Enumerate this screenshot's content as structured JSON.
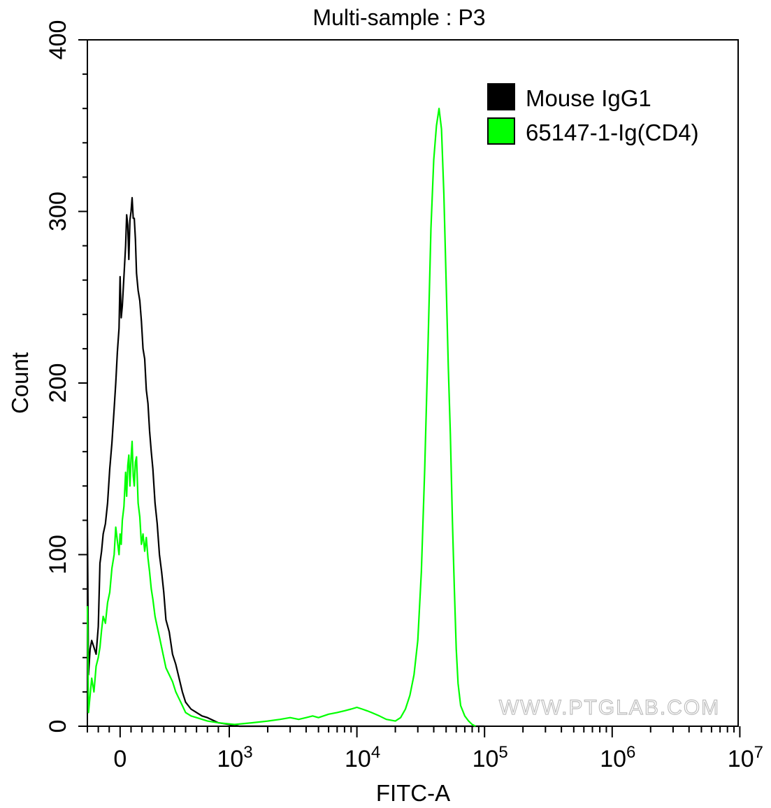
{
  "chart_data": {
    "type": "line",
    "title": "Multi-sample : P3",
    "xlabel": "FITC-A",
    "ylabel": "Count",
    "x_scale": "biexponential",
    "xlim": [
      -300,
      10000000
    ],
    "ylim": [
      0,
      400
    ],
    "y_ticks": [
      "0",
      "100",
      "200",
      "300",
      "400"
    ],
    "x_ticks": [
      {
        "value": 0,
        "base": "0",
        "exp": ""
      },
      {
        "value": 1000,
        "base": "10",
        "exp": "3"
      },
      {
        "value": 10000,
        "base": "10",
        "exp": "4"
      },
      {
        "value": 100000,
        "base": "10",
        "exp": "5"
      },
      {
        "value": 1000000,
        "base": "10",
        "exp": "6"
      },
      {
        "value": 10000000,
        "base": "10",
        "exp": "7"
      }
    ],
    "grid": false,
    "legend_position": "top-right",
    "watermark": "WWW.PTGLAB.COM",
    "series": [
      {
        "name": "Mouse IgG1",
        "color": "#000000",
        "points": [
          [
            -300,
            120
          ],
          [
            -290,
            30
          ],
          [
            -275,
            45
          ],
          [
            -260,
            50
          ],
          [
            -240,
            46
          ],
          [
            -220,
            42
          ],
          [
            -200,
            58
          ],
          [
            -185,
            95
          ],
          [
            -170,
            102
          ],
          [
            -155,
            112
          ],
          [
            -135,
            118
          ],
          [
            -115,
            130
          ],
          [
            -95,
            150
          ],
          [
            -75,
            165
          ],
          [
            -55,
            185
          ],
          [
            -40,
            200
          ],
          [
            -25,
            218
          ],
          [
            -10,
            232
          ],
          [
            0,
            262
          ],
          [
            10,
            238
          ],
          [
            20,
            245
          ],
          [
            35,
            262
          ],
          [
            50,
            280
          ],
          [
            60,
            298
          ],
          [
            70,
            292
          ],
          [
            80,
            272
          ],
          [
            90,
            295
          ],
          [
            100,
            300
          ],
          [
            110,
            308
          ],
          [
            120,
            296
          ],
          [
            130,
            296
          ],
          [
            140,
            284
          ],
          [
            150,
            264
          ],
          [
            165,
            254
          ],
          [
            180,
            248
          ],
          [
            195,
            236
          ],
          [
            210,
            220
          ],
          [
            225,
            214
          ],
          [
            240,
            196
          ],
          [
            255,
            188
          ],
          [
            270,
            172
          ],
          [
            285,
            160
          ],
          [
            300,
            150
          ],
          [
            320,
            130
          ],
          [
            340,
            118
          ],
          [
            360,
            100
          ],
          [
            380,
            90
          ],
          [
            400,
            78
          ],
          [
            420,
            62
          ],
          [
            450,
            55
          ],
          [
            480,
            42
          ],
          [
            510,
            36
          ],
          [
            540,
            28
          ],
          [
            570,
            20
          ],
          [
            600,
            14
          ],
          [
            650,
            10
          ],
          [
            700,
            8
          ],
          [
            750,
            6
          ],
          [
            800,
            5
          ],
          [
            900,
            2
          ],
          [
            1000,
            1
          ],
          [
            1200,
            0
          ],
          [
            100000,
            0
          ]
        ]
      },
      {
        "name": "65147-1-Ig(CD4)",
        "color": "#00ff00",
        "points": [
          [
            -300,
            70
          ],
          [
            -290,
            8
          ],
          [
            -275,
            18
          ],
          [
            -260,
            28
          ],
          [
            -240,
            20
          ],
          [
            -220,
            35
          ],
          [
            -200,
            40
          ],
          [
            -185,
            46
          ],
          [
            -170,
            56
          ],
          [
            -155,
            64
          ],
          [
            -135,
            60
          ],
          [
            -115,
            72
          ],
          [
            -95,
            78
          ],
          [
            -75,
            92
          ],
          [
            -55,
            100
          ],
          [
            -40,
            116
          ],
          [
            -25,
            108
          ],
          [
            -10,
            100
          ],
          [
            0,
            112
          ],
          [
            10,
            106
          ],
          [
            20,
            120
          ],
          [
            35,
            128
          ],
          [
            50,
            148
          ],
          [
            60,
            134
          ],
          [
            70,
            152
          ],
          [
            80,
            158
          ],
          [
            90,
            140
          ],
          [
            100,
            156
          ],
          [
            110,
            166
          ],
          [
            120,
            146
          ],
          [
            130,
            140
          ],
          [
            140,
            154
          ],
          [
            150,
            157
          ],
          [
            165,
            130
          ],
          [
            180,
            122
          ],
          [
            195,
            106
          ],
          [
            210,
            112
          ],
          [
            225,
            102
          ],
          [
            240,
            110
          ],
          [
            255,
            98
          ],
          [
            270,
            90
          ],
          [
            285,
            80
          ],
          [
            300,
            74
          ],
          [
            320,
            64
          ],
          [
            340,
            58
          ],
          [
            360,
            52
          ],
          [
            380,
            46
          ],
          [
            400,
            40
          ],
          [
            420,
            34
          ],
          [
            450,
            30
          ],
          [
            480,
            26
          ],
          [
            510,
            20
          ],
          [
            540,
            16
          ],
          [
            570,
            12
          ],
          [
            600,
            8
          ],
          [
            650,
            6
          ],
          [
            700,
            5
          ],
          [
            800,
            3
          ],
          [
            900,
            2
          ],
          [
            1100,
            1
          ],
          [
            1500,
            2
          ],
          [
            2000,
            3
          ],
          [
            2500,
            4
          ],
          [
            3000,
            5
          ],
          [
            3500,
            4
          ],
          [
            4000,
            5
          ],
          [
            4500,
            6
          ],
          [
            5000,
            5
          ],
          [
            6000,
            7
          ],
          [
            7000,
            8
          ],
          [
            8000,
            9
          ],
          [
            9000,
            10
          ],
          [
            10000,
            11
          ],
          [
            11000,
            10
          ],
          [
            12000,
            9
          ],
          [
            13000,
            8
          ],
          [
            15000,
            6
          ],
          [
            17000,
            4
          ],
          [
            20000,
            3
          ],
          [
            22000,
            5
          ],
          [
            24000,
            10
          ],
          [
            26000,
            18
          ],
          [
            28000,
            30
          ],
          [
            30000,
            50
          ],
          [
            32000,
            90
          ],
          [
            34000,
            150
          ],
          [
            36000,
            220
          ],
          [
            38000,
            290
          ],
          [
            40000,
            330
          ],
          [
            42000,
            350
          ],
          [
            44000,
            360
          ],
          [
            46000,
            348
          ],
          [
            48000,
            310
          ],
          [
            50000,
            260
          ],
          [
            52000,
            210
          ],
          [
            54000,
            170
          ],
          [
            56000,
            120
          ],
          [
            58000,
            80
          ],
          [
            60000,
            45
          ],
          [
            62000,
            25
          ],
          [
            65000,
            12
          ],
          [
            70000,
            6
          ],
          [
            75000,
            3
          ],
          [
            80000,
            1
          ],
          [
            85000,
            0
          ]
        ]
      }
    ]
  }
}
